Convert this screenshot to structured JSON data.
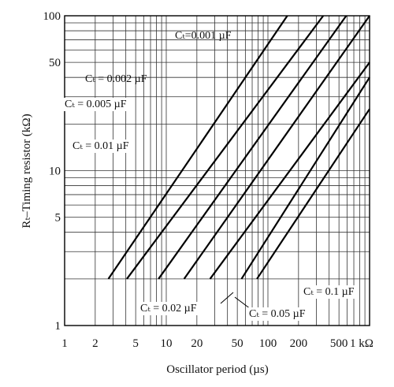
{
  "chart_data": {
    "type": "line",
    "xscale": "log",
    "yscale": "log",
    "xlim": [
      1,
      1000
    ],
    "ylim": [
      1,
      100
    ],
    "grid": true,
    "xlabel": "Oscillator period (µs)",
    "ylabel": "Rₜ–Timing resistor (kΩ)",
    "xticks": [
      {
        "value": 1,
        "label": "1"
      },
      {
        "value": 2,
        "label": "2"
      },
      {
        "value": 5,
        "label": "5"
      },
      {
        "value": 10,
        "label": "10"
      },
      {
        "value": 20,
        "label": "20"
      },
      {
        "value": 50,
        "label": "50"
      },
      {
        "value": 100,
        "label": "100"
      },
      {
        "value": 200,
        "label": "200"
      },
      {
        "value": 500,
        "label": "500"
      },
      {
        "value": 1000,
        "label": "1 kΩ"
      }
    ],
    "yticks": [
      {
        "value": 1,
        "label": "1"
      },
      {
        "value": 5,
        "label": "5"
      },
      {
        "value": 10,
        "label": "10"
      },
      {
        "value": 50,
        "label": "50"
      },
      {
        "value": 100,
        "label": "100"
      }
    ],
    "series": [
      {
        "name": "Cₜ=0.001 µF",
        "points": [
          [
            2.7,
            2
          ],
          [
            155,
            100
          ]
        ]
      },
      {
        "name": "Cₜ = 0.002 µF",
        "points": [
          [
            4.1,
            2
          ],
          [
            350,
            100
          ]
        ]
      },
      {
        "name": "Cₜ = 0.005 µF",
        "points": [
          [
            8.4,
            2
          ],
          [
            590,
            100
          ]
        ]
      },
      {
        "name": "Cₜ = 0.01 µF",
        "points": [
          [
            15,
            2
          ],
          [
            1000,
            100
          ]
        ]
      },
      {
        "name": "Cₜ = 0.02 µF",
        "points": [
          [
            27,
            2
          ],
          [
            1000,
            50
          ]
        ]
      },
      {
        "name": "Cₜ = 0.05 µF",
        "points": [
          [
            55,
            2
          ],
          [
            1000,
            40
          ]
        ]
      },
      {
        "name": "Cₜ = 0.1 µF",
        "points": [
          [
            78,
            2
          ],
          [
            1000,
            25
          ]
        ]
      }
    ]
  }
}
